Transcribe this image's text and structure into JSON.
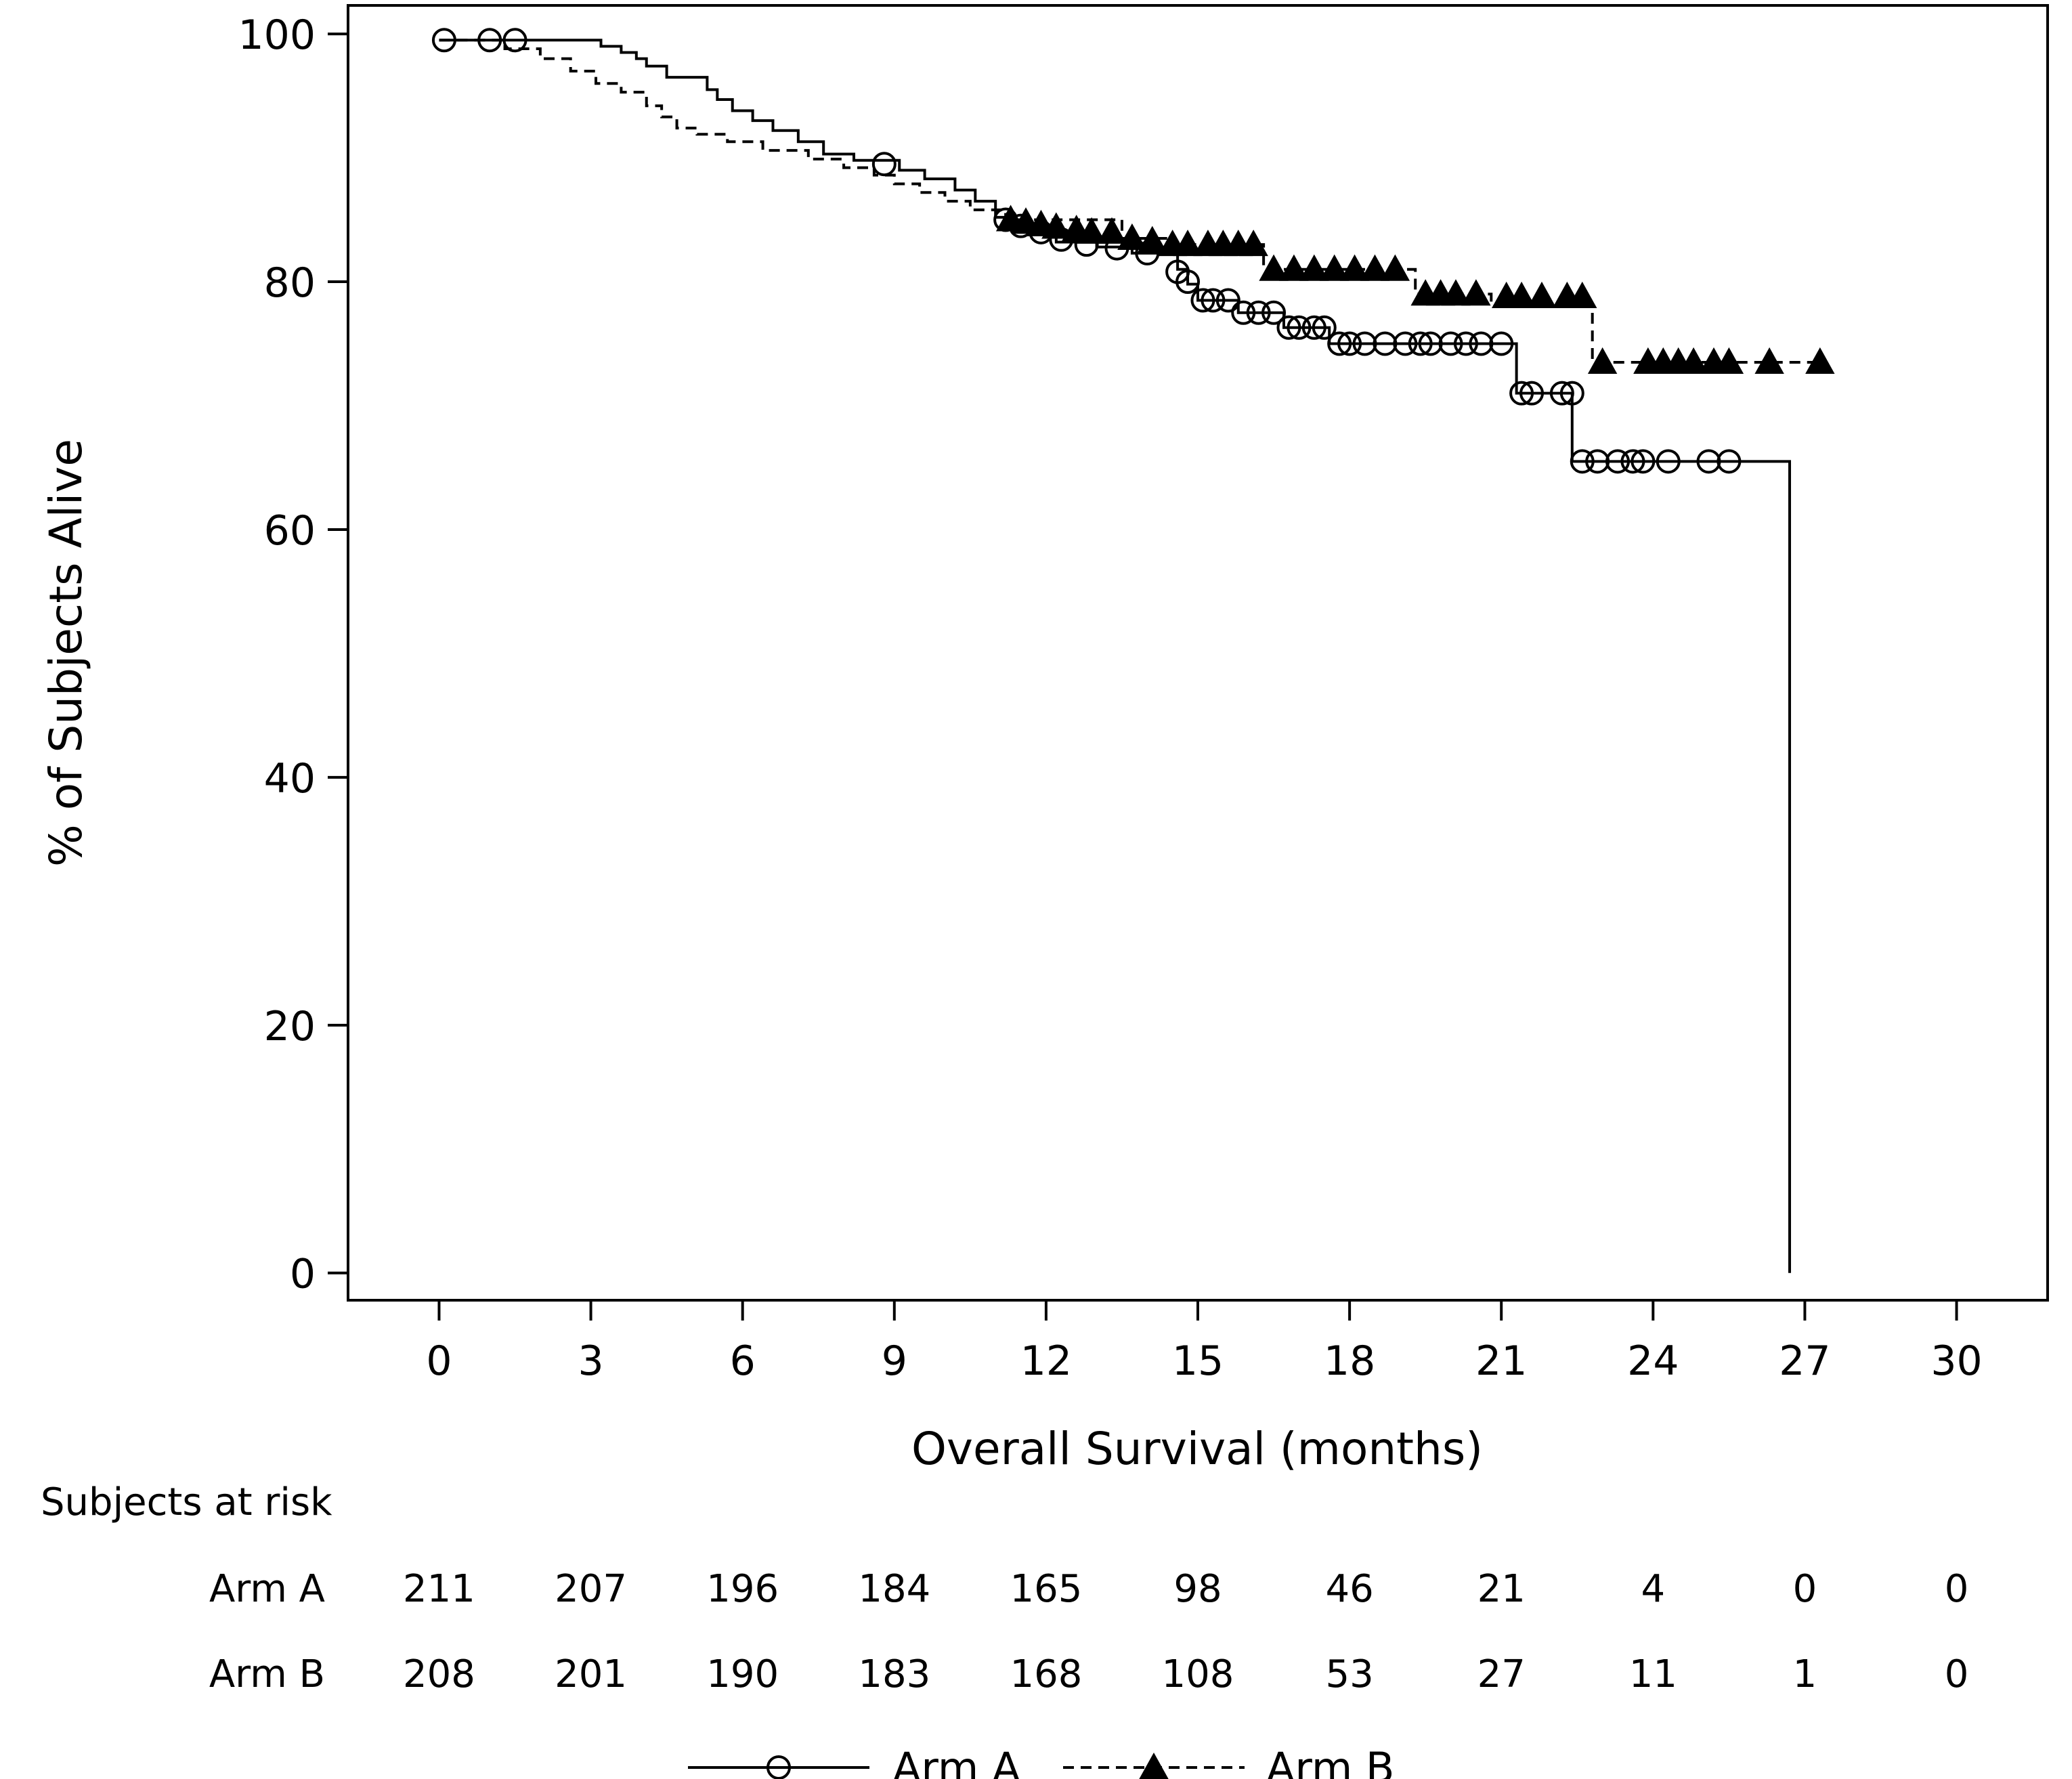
{
  "chart_data": {
    "type": "line",
    "subtype": "kaplan-meier",
    "title": "",
    "xlabel": "Overall Survival (months)",
    "ylabel": "% of Subjects Alive",
    "xlim": [
      -1.8,
      31.8
    ],
    "ylim": [
      -2.2,
      102.3
    ],
    "x_ticks": [
      0,
      3,
      6,
      9,
      12,
      15,
      18,
      21,
      24,
      27,
      30
    ],
    "y_ticks": [
      0,
      20,
      40,
      60,
      80,
      100
    ],
    "grid": false,
    "legend_position": "bottom-center",
    "series": [
      {
        "name": "Arm A",
        "line_style": "solid",
        "marker": "open-circle",
        "color": "#000000",
        "steps": [
          [
            0,
            99.5
          ],
          [
            3.2,
            99.0
          ],
          [
            3.6,
            98.5
          ],
          [
            3.9,
            98.0
          ],
          [
            4.1,
            97.4
          ],
          [
            4.5,
            96.5
          ],
          [
            5.3,
            95.5
          ],
          [
            5.5,
            94.7
          ],
          [
            5.8,
            93.8
          ],
          [
            6.2,
            93.0
          ],
          [
            6.6,
            92.2
          ],
          [
            7.1,
            91.3
          ],
          [
            7.6,
            90.3
          ],
          [
            8.2,
            89.8
          ],
          [
            9.1,
            89.0
          ],
          [
            9.6,
            88.3
          ],
          [
            10.2,
            87.4
          ],
          [
            10.6,
            86.5
          ],
          [
            11.0,
            85.2
          ],
          [
            11.3,
            84.5
          ],
          [
            11.8,
            83.8
          ],
          [
            12.2,
            83.2
          ],
          [
            13.0,
            82.8
          ],
          [
            13.7,
            82.3
          ],
          [
            14.6,
            81.0
          ],
          [
            14.8,
            79.8
          ],
          [
            15.0,
            78.5
          ],
          [
            15.8,
            77.5
          ],
          [
            16.7,
            76.3
          ],
          [
            17.6,
            75.0
          ],
          [
            21.3,
            71.0
          ],
          [
            22.4,
            65.5
          ],
          [
            26.7,
            0
          ]
        ],
        "censored": [
          [
            0.1,
            99.5
          ],
          [
            1.0,
            99.5
          ],
          [
            1.5,
            99.5
          ],
          [
            8.8,
            89.5
          ],
          [
            11.2,
            85.0
          ],
          [
            11.5,
            84.5
          ],
          [
            11.9,
            84.0
          ],
          [
            12.3,
            83.4
          ],
          [
            12.8,
            83.0
          ],
          [
            13.4,
            82.7
          ],
          [
            14.0,
            82.3
          ],
          [
            14.6,
            80.8
          ],
          [
            14.8,
            80.0
          ],
          [
            15.1,
            78.5
          ],
          [
            15.3,
            78.5
          ],
          [
            15.6,
            78.5
          ],
          [
            15.9,
            77.5
          ],
          [
            16.2,
            77.5
          ],
          [
            16.5,
            77.5
          ],
          [
            16.8,
            76.3
          ],
          [
            17.0,
            76.3
          ],
          [
            17.3,
            76.3
          ],
          [
            17.5,
            76.3
          ],
          [
            17.8,
            75.0
          ],
          [
            18.0,
            75.0
          ],
          [
            18.3,
            75.0
          ],
          [
            18.7,
            75.0
          ],
          [
            19.1,
            75.0
          ],
          [
            19.4,
            75.0
          ],
          [
            19.6,
            75.0
          ],
          [
            20.0,
            75.0
          ],
          [
            20.3,
            75.0
          ],
          [
            20.6,
            75.0
          ],
          [
            21.0,
            75.0
          ],
          [
            21.4,
            71.0
          ],
          [
            21.6,
            71.0
          ],
          [
            22.2,
            71.0
          ],
          [
            22.4,
            71.0
          ],
          [
            22.6,
            65.5
          ],
          [
            22.9,
            65.5
          ],
          [
            23.3,
            65.5
          ],
          [
            23.6,
            65.5
          ],
          [
            23.8,
            65.5
          ],
          [
            24.3,
            65.5
          ],
          [
            25.1,
            65.5
          ],
          [
            25.5,
            65.5
          ]
        ]
      },
      {
        "name": "Arm B",
        "line_style": "dashed",
        "marker": "filled-triangle",
        "color": "#000000",
        "steps": [
          [
            0,
            99.5
          ],
          [
            1.3,
            98.8
          ],
          [
            2.0,
            98.0
          ],
          [
            2.6,
            97.0
          ],
          [
            3.1,
            96.0
          ],
          [
            3.6,
            95.3
          ],
          [
            4.1,
            94.2
          ],
          [
            4.4,
            93.3
          ],
          [
            4.7,
            92.4
          ],
          [
            5.1,
            91.9
          ],
          [
            5.7,
            91.3
          ],
          [
            6.4,
            90.6
          ],
          [
            7.3,
            89.9
          ],
          [
            8.0,
            89.2
          ],
          [
            8.6,
            88.6
          ],
          [
            9.0,
            87.9
          ],
          [
            9.5,
            87.2
          ],
          [
            10.0,
            86.5
          ],
          [
            10.5,
            85.8
          ],
          [
            11.2,
            85.0
          ],
          [
            13.5,
            83.5
          ],
          [
            14.5,
            83.0
          ],
          [
            16.3,
            81.0
          ],
          [
            19.3,
            79.0
          ],
          [
            20.8,
            78.0
          ],
          [
            22.8,
            73.5
          ]
        ],
        "censored": [
          [
            11.3,
            85.0
          ],
          [
            11.6,
            84.8
          ],
          [
            11.9,
            84.6
          ],
          [
            12.2,
            84.4
          ],
          [
            12.6,
            84.2
          ],
          [
            12.9,
            84.0
          ],
          [
            13.3,
            84.0
          ],
          [
            13.7,
            83.5
          ],
          [
            14.1,
            83.3
          ],
          [
            14.5,
            83.0
          ],
          [
            14.8,
            83.0
          ],
          [
            15.2,
            83.0
          ],
          [
            15.5,
            83.0
          ],
          [
            15.8,
            83.0
          ],
          [
            16.1,
            83.0
          ],
          [
            16.5,
            81.0
          ],
          [
            16.9,
            81.0
          ],
          [
            17.3,
            81.0
          ],
          [
            17.7,
            81.0
          ],
          [
            18.1,
            81.0
          ],
          [
            18.5,
            81.0
          ],
          [
            18.9,
            81.0
          ],
          [
            19.5,
            79.0
          ],
          [
            19.8,
            79.0
          ],
          [
            20.1,
            79.0
          ],
          [
            20.5,
            79.0
          ],
          [
            21.1,
            78.8
          ],
          [
            21.4,
            78.8
          ],
          [
            21.8,
            78.8
          ],
          [
            22.3,
            78.8
          ],
          [
            22.6,
            78.8
          ],
          [
            23.0,
            73.5
          ],
          [
            23.9,
            73.5
          ],
          [
            24.2,
            73.5
          ],
          [
            24.5,
            73.5
          ],
          [
            24.8,
            73.5
          ],
          [
            25.2,
            73.5
          ],
          [
            25.5,
            73.5
          ],
          [
            26.3,
            73.5
          ],
          [
            27.3,
            73.5
          ]
        ]
      }
    ],
    "risk_table": {
      "title": "Subjects at risk",
      "times": [
        0,
        3,
        6,
        9,
        12,
        15,
        18,
        21,
        24,
        27,
        30
      ],
      "rows": [
        {
          "label": "Arm A",
          "values": [
            "211",
            "207",
            "196",
            "184",
            "165",
            "98",
            "46",
            "21",
            "4",
            "0",
            "0"
          ]
        },
        {
          "label": "Arm B",
          "values": [
            "208",
            "201",
            "190",
            "183",
            "168",
            "108",
            "53",
            "27",
            "11",
            "1",
            "0"
          ]
        }
      ]
    }
  }
}
